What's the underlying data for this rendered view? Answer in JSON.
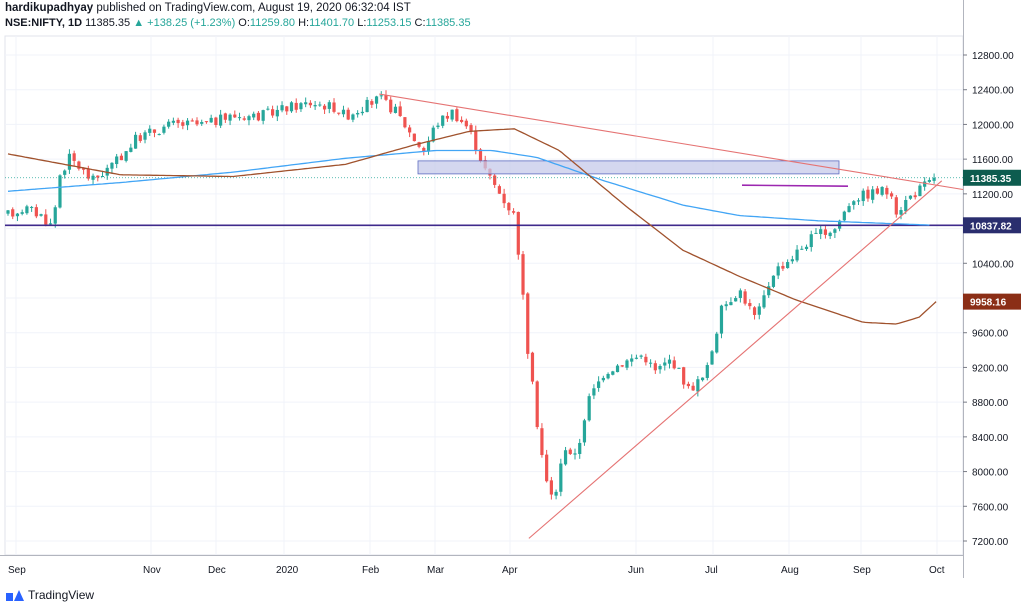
{
  "header": {
    "user": "hardikupadhyay",
    "published": "published on TradingView.com, August 19, 2020 06:32:04 IST",
    "symbol": "NSE:NIFTY, 1D",
    "last": "11385.35",
    "change": "▲ +138.25 (+1.23%)",
    "o_label": "O:",
    "o_value": "11259.80",
    "h_label": "H:",
    "h_value": "11401.70",
    "l_label": "L:",
    "l_value": "11253.15",
    "c_label": "C:",
    "c_value": "11385.35"
  },
  "footer": {
    "brand": "TradingView"
  },
  "colors": {
    "up": "#26a69a",
    "down": "#ef5350",
    "sma_blue": "#42a5f5",
    "sma_brown": "#a0522d",
    "trendline": "#e57373",
    "support": "#3f2a8c",
    "resistance": "#9c27b0",
    "zone_fill": "#c5cae9",
    "zone_stroke": "#5c6bc0",
    "badge_price": "#0d5c4f",
    "badge_support": "#2a2e6e",
    "badge_ma": "#8b2e16"
  },
  "chart_data": {
    "type": "candlestick",
    "title": "",
    "y_axis": {
      "ticks": [
        "7200.00",
        "7600.00",
        "8000.00",
        "8400.00",
        "8800.00",
        "9200.00",
        "9600.00",
        "10000.00",
        "10400.00",
        "10800.00",
        "11200.00",
        "11600.00",
        "12000.00",
        "12400.00",
        "12800.00"
      ],
      "range": [
        7000,
        13100
      ]
    },
    "x_axis": {
      "labels": [
        "Sep",
        "Nov",
        "Dec",
        "2020",
        "Feb",
        "Mar",
        "Apr",
        "Jun",
        "Jul",
        "Aug",
        "Sep",
        "Oct"
      ]
    },
    "price_labels": {
      "last": "11385.35",
      "support": "10837.82",
      "moving_average": "9958.16"
    },
    "levels": {
      "support": 10837.82,
      "zone_low": 11430,
      "zone_high": 11580,
      "resistance_short": 11300
    },
    "candle_anchors": [
      {
        "d": 0,
        "p": 10960
      },
      {
        "d": 15,
        "p": 11040
      },
      {
        "d": 30,
        "p": 10950
      },
      {
        "d": 40,
        "p": 10820
      },
      {
        "d": 45,
        "p": 11400
      },
      {
        "d": 55,
        "p": 11620
      },
      {
        "d": 75,
        "p": 11350
      },
      {
        "d": 95,
        "p": 11550
      },
      {
        "d": 115,
        "p": 11850
      },
      {
        "d": 145,
        "p": 12000
      },
      {
        "d": 175,
        "p": 12000
      },
      {
        "d": 200,
        "p": 12100
      },
      {
        "d": 225,
        "p": 12100
      },
      {
        "d": 250,
        "p": 12200
      },
      {
        "d": 270,
        "p": 12250
      },
      {
        "d": 290,
        "p": 12200
      },
      {
        "d": 300,
        "p": 12100
      },
      {
        "d": 330,
        "p": 12300
      },
      {
        "d": 345,
        "p": 12150
      },
      {
        "d": 360,
        "p": 11850
      },
      {
        "d": 370,
        "p": 11700
      },
      {
        "d": 380,
        "p": 12000
      },
      {
        "d": 395,
        "p": 12150
      },
      {
        "d": 410,
        "p": 11950
      },
      {
        "d": 425,
        "p": 11450
      },
      {
        "d": 435,
        "p": 11250
      },
      {
        "d": 450,
        "p": 10950
      },
      {
        "d": 455,
        "p": 10400
      },
      {
        "d": 462,
        "p": 9400
      },
      {
        "d": 470,
        "p": 8600
      },
      {
        "d": 478,
        "p": 7900
      },
      {
        "d": 485,
        "p": 7650
      },
      {
        "d": 495,
        "p": 8300
      },
      {
        "d": 505,
        "p": 8150
      },
      {
        "d": 515,
        "p": 8800
      },
      {
        "d": 530,
        "p": 9150
      },
      {
        "d": 545,
        "p": 9250
      },
      {
        "d": 565,
        "p": 9350
      },
      {
        "d": 575,
        "p": 9150
      },
      {
        "d": 590,
        "p": 9300
      },
      {
        "d": 605,
        "p": 8950
      },
      {
        "d": 620,
        "p": 9100
      },
      {
        "d": 635,
        "p": 9900
      },
      {
        "d": 650,
        "p": 10100
      },
      {
        "d": 665,
        "p": 9750
      },
      {
        "d": 680,
        "p": 10300
      },
      {
        "d": 695,
        "p": 10450
      },
      {
        "d": 715,
        "p": 10700
      },
      {
        "d": 735,
        "p": 10800
      },
      {
        "d": 750,
        "p": 11150
      },
      {
        "d": 765,
        "p": 11200
      },
      {
        "d": 780,
        "p": 11250
      },
      {
        "d": 790,
        "p": 11000
      },
      {
        "d": 800,
        "p": 11150
      },
      {
        "d": 815,
        "p": 11300
      },
      {
        "d": 826,
        "p": 11385
      }
    ],
    "ma_blue": [
      {
        "d": 0,
        "p": 11230
      },
      {
        "d": 100,
        "p": 11330
      },
      {
        "d": 200,
        "p": 11450
      },
      {
        "d": 300,
        "p": 11610
      },
      {
        "d": 380,
        "p": 11700
      },
      {
        "d": 430,
        "p": 11700
      },
      {
        "d": 470,
        "p": 11620
      },
      {
        "d": 530,
        "p": 11350
      },
      {
        "d": 600,
        "p": 11070
      },
      {
        "d": 650,
        "p": 10950
      },
      {
        "d": 720,
        "p": 10890
      },
      {
        "d": 800,
        "p": 10850
      },
      {
        "d": 820,
        "p": 10840
      }
    ],
    "ma_brown": [
      {
        "d": 0,
        "p": 11660
      },
      {
        "d": 100,
        "p": 11420
      },
      {
        "d": 200,
        "p": 11400
      },
      {
        "d": 300,
        "p": 11540
      },
      {
        "d": 360,
        "p": 11760
      },
      {
        "d": 410,
        "p": 11920
      },
      {
        "d": 450,
        "p": 11950
      },
      {
        "d": 490,
        "p": 11700
      },
      {
        "d": 550,
        "p": 11050
      },
      {
        "d": 600,
        "p": 10550
      },
      {
        "d": 650,
        "p": 10250
      },
      {
        "d": 700,
        "p": 9980
      },
      {
        "d": 760,
        "p": 9720
      },
      {
        "d": 790,
        "p": 9700
      },
      {
        "d": 810,
        "p": 9780
      },
      {
        "d": 825,
        "p": 9958
      }
    ],
    "trendlines": [
      {
        "name": "descending",
        "from": {
          "d": 330,
          "p": 12350
        },
        "to": {
          "d": 950,
          "p": 11250
        }
      },
      {
        "name": "ascending",
        "from": {
          "d": 463,
          "p": 7230
        },
        "to": {
          "d": 830,
          "p": 11350
        }
      }
    ]
  }
}
